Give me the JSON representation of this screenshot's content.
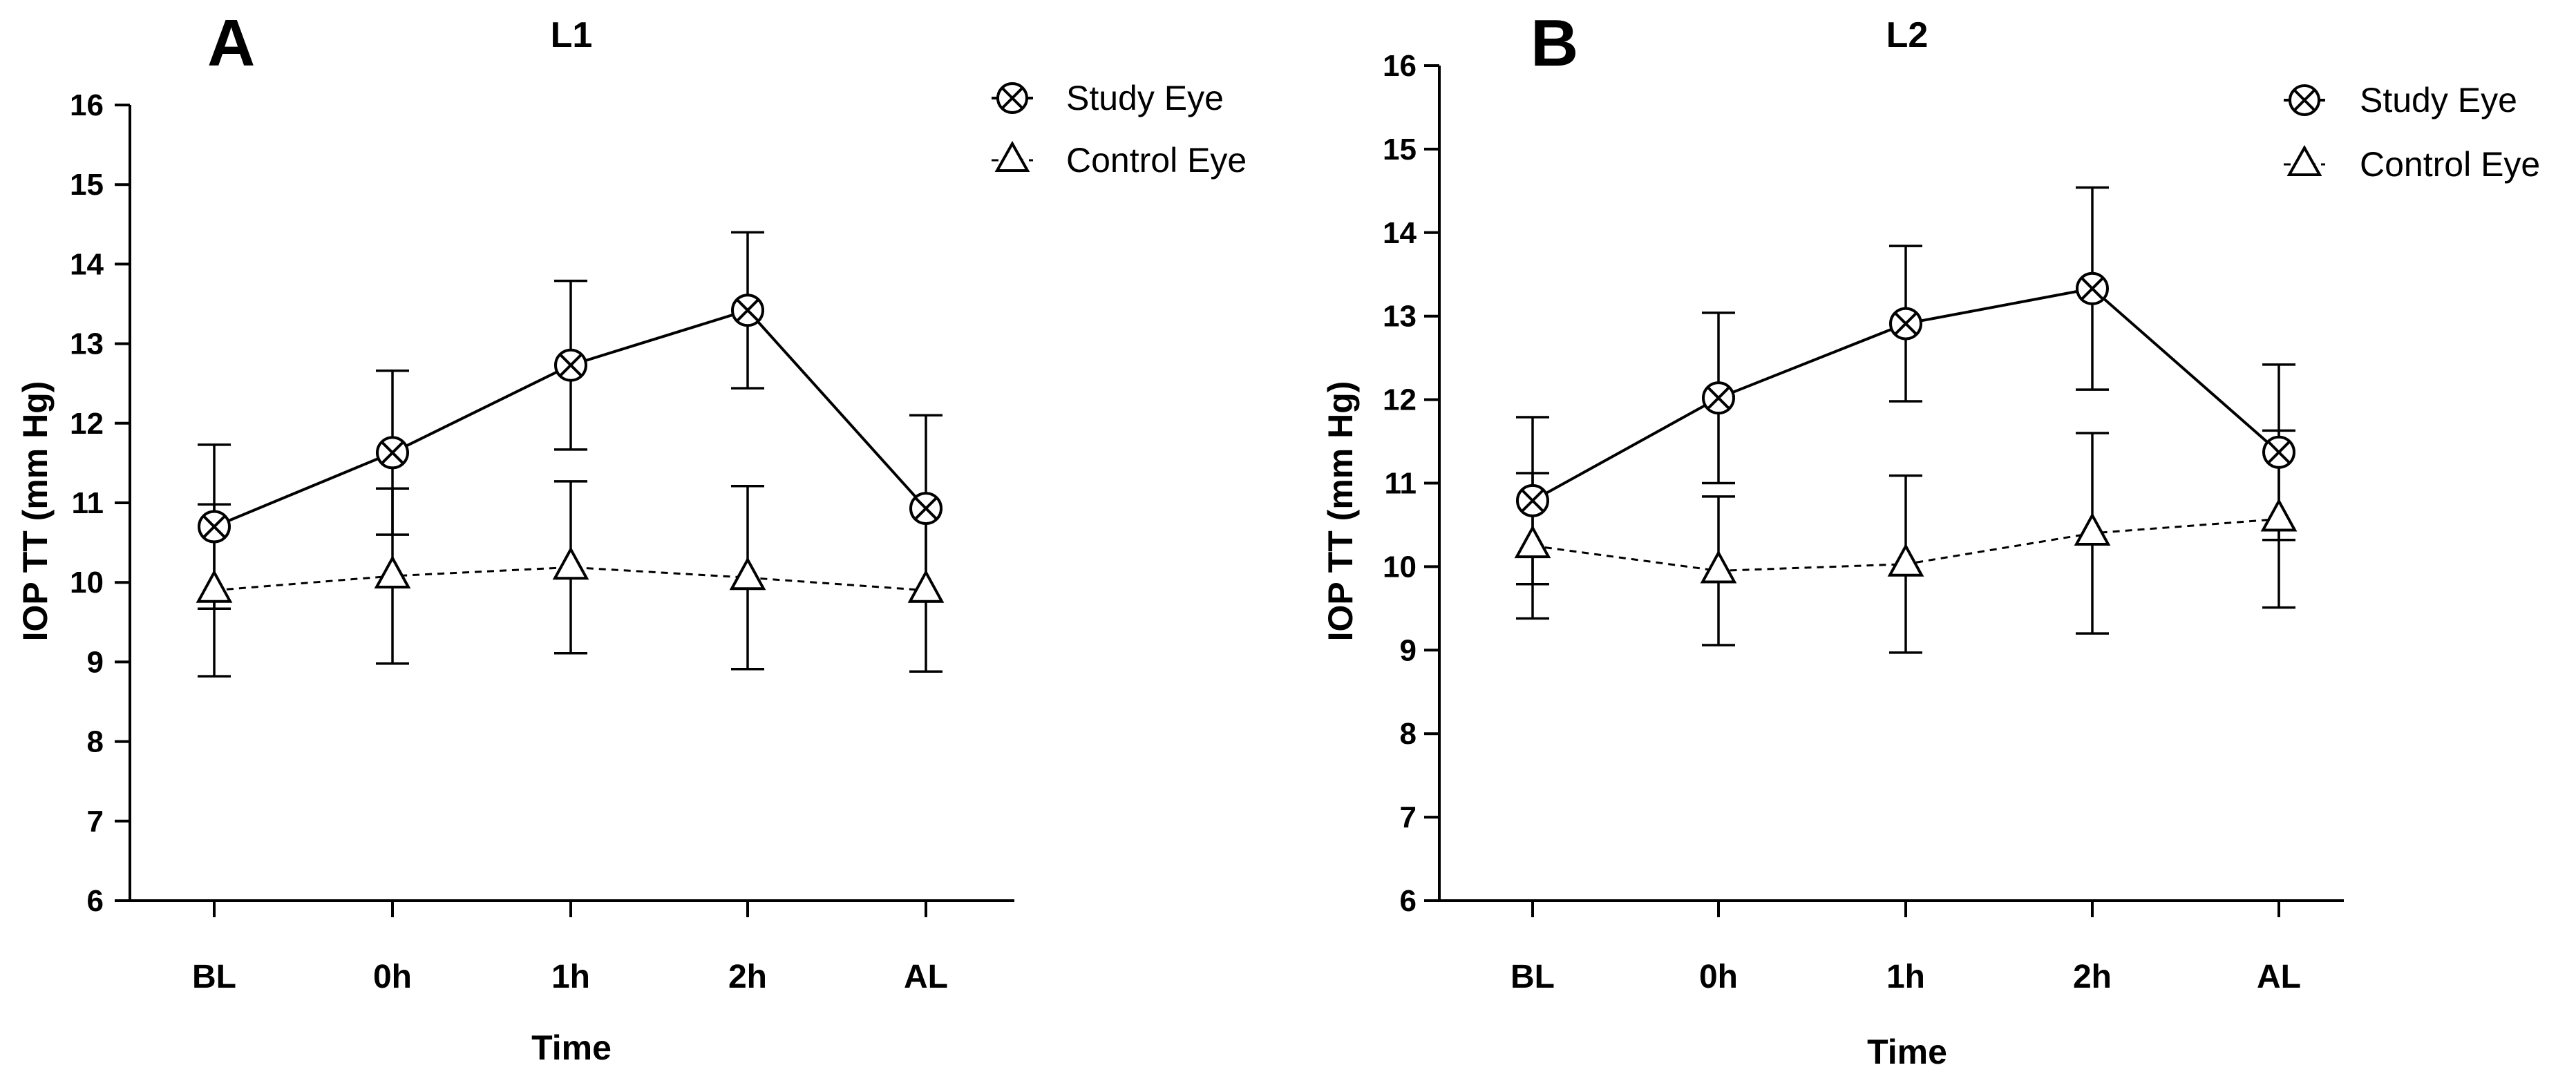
{
  "chart_data": [
    {
      "type": "line",
      "panel_label": "A",
      "title": "L1",
      "xlabel": "Time",
      "ylabel": "IOP TT (mm Hg)",
      "categories": [
        "BL",
        "0h",
        "1h",
        "2h",
        "AL"
      ],
      "ylim": [
        6,
        16
      ],
      "yticks": [
        "6",
        "7",
        "8",
        "9",
        "10",
        "11",
        "12",
        "13",
        "14",
        "15",
        "16"
      ],
      "grid": false,
      "legend_position": "top-right",
      "series": [
        {
          "name": "Study Eye",
          "marker": "circle-x",
          "line_style": "solid",
          "values": [
            10.7,
            11.63,
            12.73,
            13.42,
            10.93
          ],
          "error": [
            1.03,
            1.03,
            1.06,
            0.98,
            1.17
          ]
        },
        {
          "name": "Control Eye",
          "marker": "triangle",
          "line_style": "dashed",
          "values": [
            9.9,
            10.08,
            10.19,
            10.06,
            9.9
          ],
          "error": [
            1.08,
            1.1,
            1.08,
            1.15,
            1.02
          ]
        }
      ]
    },
    {
      "type": "line",
      "panel_label": "B",
      "title": "L2",
      "xlabel": "Time",
      "ylabel": "IOP TT (mm Hg)",
      "categories": [
        "BL",
        "0h",
        "1h",
        "2h",
        "AL"
      ],
      "ylim": [
        6,
        16
      ],
      "yticks": [
        "6",
        "7",
        "8",
        "9",
        "10",
        "11",
        "12",
        "13",
        "14",
        "15",
        "16"
      ],
      "grid": false,
      "legend_position": "top-right",
      "series": [
        {
          "name": "Study Eye",
          "marker": "circle-x",
          "line_style": "solid",
          "values": [
            10.79,
            12.02,
            12.91,
            13.33,
            11.37
          ],
          "error": [
            1.0,
            1.02,
            0.93,
            1.21,
            1.05
          ]
        },
        {
          "name": "Control Eye",
          "marker": "triangle",
          "line_style": "dashed",
          "values": [
            10.25,
            9.95,
            10.03,
            10.4,
            10.57
          ],
          "error": [
            0.87,
            0.89,
            1.06,
            1.2,
            1.06
          ]
        }
      ]
    }
  ]
}
